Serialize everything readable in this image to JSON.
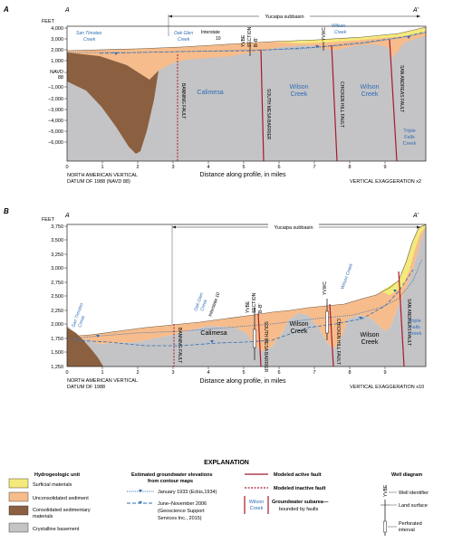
{
  "colors": {
    "surficial": "#f4ea7b",
    "unconsolidated": "#f7bc8c",
    "consolidated": "#8b6040",
    "crystalline": "#c4c4c6",
    "active_fault": "#a8192c",
    "water_blue": "#2d6db5"
  },
  "panel_a": {
    "label": "A",
    "end_label_left": "A",
    "end_label_right": "A'",
    "subbasin": "Yucaipa subbasin",
    "y_axis_unit": "FEET",
    "y_ticks": [
      "4,000",
      "3,000",
      "2,000",
      "1,000",
      "NAVD",
      "88",
      "−1,000",
      "−2,000",
      "−3,000",
      "−4,000",
      "−5,000",
      "−6,000"
    ],
    "x_ticks": [
      "0",
      "1",
      "2",
      "3",
      "4",
      "5",
      "6",
      "7",
      "8",
      "9"
    ],
    "x_axis_title": "Distance along profile, in miles",
    "datum_line1": "NORTH AMERICAN VERTICAL",
    "datum_line2": "DATUM OF 1988 (NAVD 88)",
    "vertical_exaggeration": "VERTICAL EXAGGERATION x2",
    "creeks": [
      "San Timoteo",
      "Creek",
      "Oak Glen",
      "Creek",
      "Wilson",
      "Creek"
    ],
    "interstate": [
      "Interstate",
      "10"
    ],
    "section_label": [
      "YVBE",
      "SECTION",
      "B–B'"
    ],
    "well": "YVWC",
    "faults": [
      "BANNING FAULT",
      "SOUTH MESA BARRIER",
      "CHICKEN HILL FAULT",
      "SAN ANDREAS FAULT"
    ],
    "subareas": [
      "Calimesa",
      "Wilson",
      "Creek",
      "Wilson",
      "Creek",
      "Triple",
      "Falls",
      "Creek"
    ]
  },
  "panel_b": {
    "label": "B",
    "end_label_left": "A",
    "end_label_right": "A'",
    "subbasin": "Yucaipa subbasin",
    "y_axis_unit": "FEET",
    "y_ticks": [
      "3,750",
      "3,500",
      "3,250",
      "3,000",
      "2,750",
      "2,500",
      "2,250",
      "2,000",
      "1,750",
      "1,500",
      "1,250"
    ],
    "x_ticks": [
      "0",
      "1",
      "2",
      "3",
      "4",
      "5",
      "6",
      "7",
      "8",
      "9"
    ],
    "x_axis_title": "Distance along profile, in miles",
    "datum_line1": "NORTH AMERICAN VERTICAL",
    "datum_line2": "DATUM OF 1988",
    "vertical_exaggeration": "VERTICAL EXAGGERATION x10",
    "creeks": [
      "San Timoteo",
      "Creek",
      "Oak Glen",
      "Creek",
      "Wilson Creek"
    ],
    "interstate": "Interstate 10",
    "section_label": [
      "YVBE",
      "SECTION",
      "B–B'"
    ],
    "well": "YVWC",
    "faults": [
      "BANNING FAULT",
      "SOUTH MESA BARRIER",
      "CHICKEN HILL FAULT",
      "SAN ANDREAS FAULT"
    ],
    "subareas": [
      "Calimesa",
      "Wilson",
      "Creek",
      "Wilson",
      "Creek",
      "Triple",
      "Falls",
      "Creek"
    ]
  },
  "explanation": {
    "title": "EXPLANATION",
    "hydro_heading": "Hydrogeologic unit",
    "units": [
      "Surficial materials",
      "Unconsolidated sediment",
      "Consolidated sedimentary",
      "materials",
      "Crystalline basement"
    ],
    "gw_heading": [
      "Estimated groundwater elevations",
      "from contour maps"
    ],
    "gw_items": [
      "January 1933 (Eckis,1934)",
      "June–November 2006",
      "(Geoscience Support",
      "Services Inc., 2015)"
    ],
    "fault_items": [
      "Modeled active fault",
      "Modeled inactive fault"
    ],
    "subarea_sample": [
      "Wilson",
      "Creek"
    ],
    "subarea_text": [
      "Groundwater subarea—",
      "bounded by faults"
    ],
    "well_heading": "Well diagram",
    "well_items": [
      "Well identifier",
      "Land surface",
      "Perforated",
      "interval"
    ],
    "well_sample": "YVBE"
  }
}
